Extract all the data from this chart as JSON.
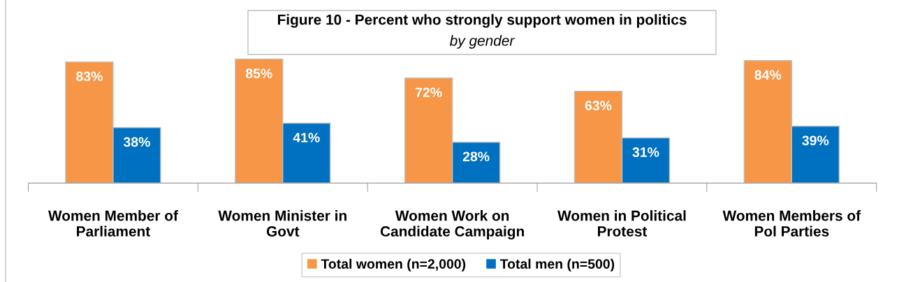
{
  "chart_data": {
    "type": "bar",
    "title": "Figure 10 - Percent who strongly support women in politics",
    "subtitle": "by gender",
    "categories": [
      "Women Member of\nParliament",
      "Women Minister in\nGovt",
      "Women Work on\nCandidate Campaign",
      "Women in Political\nProtest",
      "Women Members of\nPol Parties"
    ],
    "series": [
      {
        "name": "Total women (n=2,000)",
        "color": "#f79646",
        "values": [
          83,
          85,
          72,
          63,
          84
        ],
        "value_labels": [
          "83%",
          "85%",
          "72%",
          "63%",
          "84%"
        ]
      },
      {
        "name": "Total men (n=500)",
        "color": "#0070c0",
        "values": [
          38,
          41,
          28,
          31,
          39
        ],
        "value_labels": [
          "38%",
          "41%",
          "28%",
          "31%",
          "39%"
        ]
      }
    ],
    "tick_labels": "x",
    "legend": "bottom"
  }
}
